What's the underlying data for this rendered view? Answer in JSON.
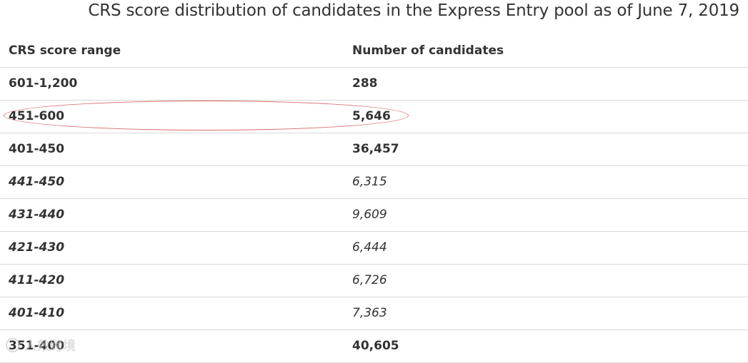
{
  "title": "CRS score distribution of candidates in the Express Entry pool as of June 7, 2019",
  "table": {
    "headers": [
      "CRS score range",
      "Number of candidates"
    ],
    "rows": [
      {
        "range": "601-1,200",
        "count": "288"
      },
      {
        "range": "451-600",
        "count": "5,646"
      },
      {
        "range": "401-450",
        "count": "36,457"
      },
      {
        "range": "441-450",
        "count": "6,315"
      },
      {
        "range": "431-440",
        "count": "9,609"
      },
      {
        "range": "421-430",
        "count": "6,444"
      },
      {
        "range": "411-420",
        "count": "6,726"
      },
      {
        "range": "401-410",
        "count": "7,363"
      },
      {
        "range": "351-400",
        "count": "40,605"
      }
    ]
  },
  "watermark": {
    "text": "人效跨境"
  },
  "colors": {
    "text": "#333333",
    "divider": "#d9d9d9",
    "annotation": "#d96a6a"
  }
}
